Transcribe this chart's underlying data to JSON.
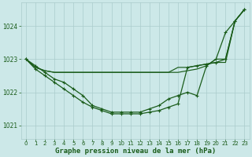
{
  "background_color": "#cce8e8",
  "grid_color": "#aacccc",
  "line_color": "#1a5c1a",
  "title": "Graphe pression niveau de la mer (hPa)",
  "title_fontsize": 6.5,
  "tick_color": "#1a5c1a",
  "ylim": [
    1020.6,
    1024.7
  ],
  "xlim": [
    -0.5,
    23.5
  ],
  "yticks": [
    1021,
    1022,
    1023,
    1024
  ],
  "xticks": [
    0,
    1,
    2,
    3,
    4,
    5,
    6,
    7,
    8,
    9,
    10,
    11,
    12,
    13,
    14,
    15,
    16,
    17,
    18,
    19,
    20,
    21,
    22,
    23
  ],
  "series": [
    {
      "y": [
        1023.0,
        1022.8,
        1022.6,
        1022.4,
        1022.3,
        1022.1,
        1021.9,
        1021.6,
        1021.5,
        1021.4,
        1021.4,
        1021.4,
        1021.4,
        1021.5,
        1021.6,
        1021.8,
        1021.9,
        1022.0,
        1021.9,
        1022.8,
        1023.0,
        1023.8,
        1024.15,
        1024.5
      ],
      "marker": true,
      "linewidth": 0.9
    },
    {
      "y": [
        1023.0,
        1022.75,
        1022.65,
        1022.6,
        1022.6,
        1022.6,
        1022.6,
        1022.6,
        1022.6,
        1022.6,
        1022.6,
        1022.6,
        1022.6,
        1022.6,
        1022.6,
        1022.6,
        1022.6,
        1022.65,
        1022.7,
        1022.8,
        1023.0,
        1023.0,
        1024.15,
        1024.5
      ],
      "marker": false,
      "linewidth": 0.85
    },
    {
      "y": [
        1023.0,
        1022.7,
        1022.5,
        1022.3,
        1022.1,
        1021.9,
        1021.7,
        1021.55,
        1021.45,
        1021.35,
        1021.35,
        1021.35,
        1021.35,
        1021.4,
        1021.45,
        1021.55,
        1021.65,
        1022.75,
        1022.8,
        1022.85,
        1022.9,
        1023.0,
        1024.15,
        1024.5
      ],
      "marker": true,
      "linewidth": 0.9
    },
    {
      "y": [
        1023.0,
        1022.75,
        1022.65,
        1022.6,
        1022.6,
        1022.6,
        1022.6,
        1022.6,
        1022.6,
        1022.6,
        1022.6,
        1022.6,
        1022.6,
        1022.6,
        1022.6,
        1022.6,
        1022.75,
        1022.75,
        1022.8,
        1022.85,
        1022.9,
        1022.9,
        1024.15,
        1024.5
      ],
      "marker": false,
      "linewidth": 0.85
    }
  ]
}
